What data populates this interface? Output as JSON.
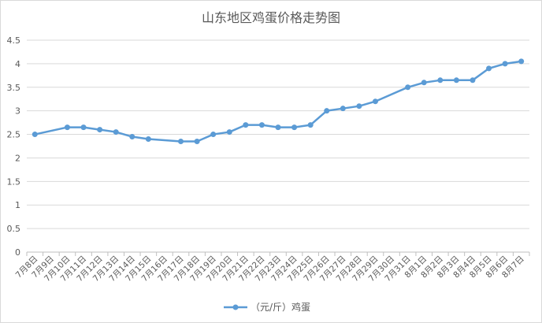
{
  "chart_data": {
    "type": "line",
    "title": "山东地区鸡蛋价格走势图",
    "xlabel": "",
    "ylabel": "",
    "ylim": [
      0,
      4.5
    ],
    "yticks": [
      "0",
      "0.5",
      "1",
      "1.5",
      "2",
      "2.5",
      "3",
      "3.5",
      "4",
      "4.5"
    ],
    "grid": true,
    "legend_position": "bottom",
    "categories": [
      "7月8日",
      "7月9日",
      "7月10日",
      "7月11日",
      "7月12日",
      "7月13日",
      "7月14日",
      "7月15日",
      "7月16日",
      "7月17日",
      "7月18日",
      "7月19日",
      "7月20日",
      "7月21日",
      "7月22日",
      "7月23日",
      "7月24日",
      "7月25日",
      "7月26日",
      "7月27日",
      "7月28日",
      "7月29日",
      "7月30日",
      "7月31日",
      "8月1日",
      "8月2日",
      "8月3日",
      "8月4日",
      "8月5日",
      "8月6日",
      "8月7日"
    ],
    "series": [
      {
        "name": "（元/斤）鸡蛋",
        "color": "#5b9bd5",
        "values": [
          2.5,
          null,
          2.65,
          2.65,
          2.6,
          2.55,
          2.45,
          2.4,
          null,
          2.35,
          2.35,
          2.5,
          2.55,
          2.7,
          2.7,
          2.65,
          2.65,
          2.7,
          3.0,
          3.05,
          3.1,
          3.2,
          null,
          3.5,
          3.6,
          3.65,
          3.65,
          3.65,
          3.9,
          4.0,
          4.05
        ]
      }
    ]
  }
}
